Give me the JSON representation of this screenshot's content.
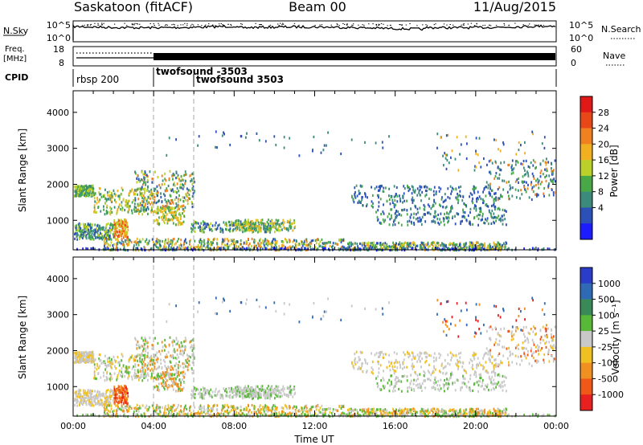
{
  "header": {
    "station": "Saskatoon (fitACF)",
    "beam": "Beam 00",
    "date": "11/Aug/2015"
  },
  "nsky_panel": {
    "left_label": "N.Sky",
    "right_label": "N.Search",
    "left_ticks": [
      "10^5",
      "10^0"
    ],
    "right_ticks": [
      "10^5",
      "10^0"
    ]
  },
  "freq_panel": {
    "left_label_1": "Freq.",
    "left_label_2": "[MHz]",
    "left_ticks": [
      "18",
      "8"
    ],
    "right_ticks": [
      "60",
      "0"
    ],
    "right_label": "Nave"
  },
  "cpid_panel": {
    "label": "CPID",
    "entries": [
      {
        "text": "rbsp 200",
        "time": 0.0
      },
      {
        "text": "twofsound -3503",
        "time": 4.0
      },
      {
        "text": "twofsound 3503",
        "time": 6.0
      }
    ]
  },
  "chart_data": [
    {
      "type": "heatmap",
      "name": "power",
      "ylabel": "Slant Range [km]",
      "xlabel": "",
      "xlim": [
        0,
        24
      ],
      "ylim": [
        180,
        4600
      ],
      "yticks": [
        "1000",
        "2000",
        "3000",
        "4000"
      ],
      "xticks": [
        "00:00",
        "04:00",
        "08:00",
        "12:00",
        "16:00",
        "20:00",
        "00:00"
      ],
      "colorbar": {
        "label": "Power [dB]",
        "tick_labels": [
          "4",
          "8",
          "12",
          "16",
          "20",
          "24",
          "28"
        ],
        "colors": [
          "#1c1cff",
          "#2b50b8",
          "#3b8a7a",
          "#48a848",
          "#bcd02a",
          "#f0b020",
          "#f08020",
          "#e84818",
          "#e01818"
        ]
      }
    },
    {
      "type": "heatmap",
      "name": "velocity",
      "ylabel": "Slant Range [km]",
      "xlabel": "Time UT",
      "xlim": [
        0,
        24
      ],
      "ylim": [
        180,
        4600
      ],
      "yticks": [
        "1000",
        "2000",
        "3000",
        "4000"
      ],
      "xticks": [
        "00:00",
        "04:00",
        "08:00",
        "12:00",
        "16:00",
        "20:00",
        "00:00"
      ],
      "colorbar": {
        "label": "Velocity [m s⁻¹]",
        "tick_labels": [
          "1000",
          "500",
          "100",
          "25",
          "-25",
          "-100",
          "-500",
          "-1000"
        ],
        "colors": [
          "#2a3cc8",
          "#2f6ab4",
          "#3a8a58",
          "#58b838",
          "#c8c8c8",
          "#f0c020",
          "#f09020",
          "#f05818",
          "#e82020"
        ]
      }
    }
  ]
}
